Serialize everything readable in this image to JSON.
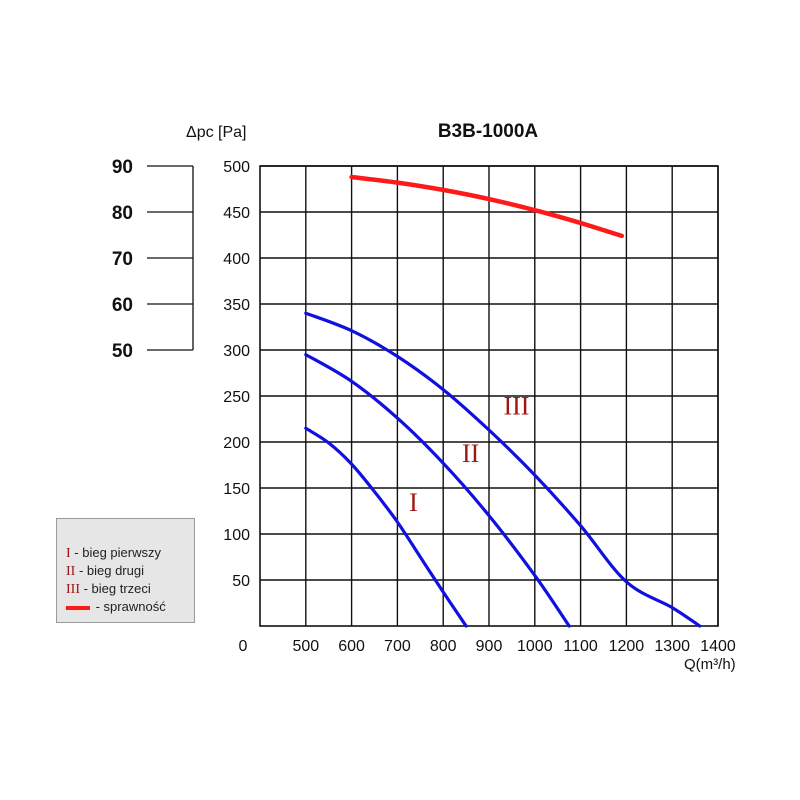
{
  "chart_data": {
    "type": "line",
    "title": "B3B-1000A",
    "ylabel": "Δpc [Pa]",
    "xlabel": "Q(m³/h)",
    "xlim": [
      400,
      1400
    ],
    "ylim": [
      0,
      500
    ],
    "x_ticks": [
      "0",
      "500",
      "600",
      "700",
      "800",
      "900",
      "1000",
      "1100",
      "1200",
      "1300",
      "1400"
    ],
    "y_ticks": [
      "50",
      "100",
      "150",
      "200",
      "250",
      "300",
      "350",
      "400",
      "450",
      "500"
    ],
    "efficiency_ticks": [
      "90",
      "80",
      "70",
      "60",
      "50"
    ],
    "grid": true,
    "colors": {
      "pressure": "#1010e0",
      "efficiency": "#ff1a1a",
      "roman": "#a01515"
    },
    "series": [
      {
        "name": "I",
        "label": "I",
        "label_pos": [
          735,
          125
        ],
        "x": [
          500,
          550,
          600,
          650,
          700,
          750,
          800,
          850
        ],
        "y": [
          215,
          199,
          176,
          146,
          113,
          75,
          37,
          0
        ]
      },
      {
        "name": "II",
        "label": "II",
        "label_pos": [
          860,
          178
        ],
        "x": [
          500,
          600,
          700,
          800,
          900,
          1000,
          1075
        ],
        "y": [
          295,
          266,
          226,
          177,
          120,
          55,
          0
        ]
      },
      {
        "name": "III",
        "label": "III",
        "label_pos": [
          960,
          230
        ],
        "x": [
          500,
          600,
          700,
          800,
          900,
          1000,
          1100,
          1200,
          1300,
          1360
        ],
        "y": [
          340,
          321,
          293,
          257,
          213,
          164,
          109,
          48,
          20,
          0
        ]
      },
      {
        "name": "sprawność",
        "kind": "efficiency",
        "x": [
          600,
          700,
          800,
          900,
          1000,
          1100,
          1190
        ],
        "y": [
          488,
          482,
          474,
          464,
          452,
          438,
          424
        ]
      }
    ]
  },
  "legend": {
    "items": [
      {
        "mark": "I",
        "text": " - bieg pierwszy"
      },
      {
        "mark": "II",
        "text": " - bieg drugi"
      },
      {
        "mark": "III",
        "text": " - bieg trzeci"
      },
      {
        "mark": "",
        "text": " - sprawność"
      }
    ]
  }
}
